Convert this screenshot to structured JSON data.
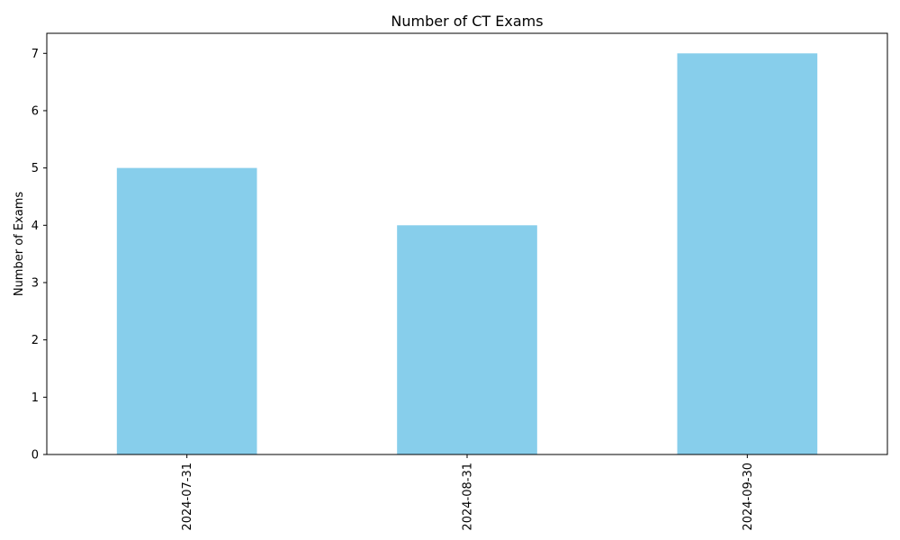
{
  "chart_data": {
    "type": "bar",
    "title": "Number of CT Exams",
    "xlabel": "",
    "ylabel": "Number of Exams",
    "categories": [
      "2024-07-31",
      "2024-08-31",
      "2024-09-30"
    ],
    "values": [
      5,
      4,
      7
    ],
    "ylim": [
      0,
      7.35
    ],
    "yticks": [
      0,
      1,
      2,
      3,
      4,
      5,
      6,
      7
    ],
    "grid": false,
    "legend": "none",
    "bar_color": "#87ceeb",
    "x_tick_rotation": "vertical"
  }
}
